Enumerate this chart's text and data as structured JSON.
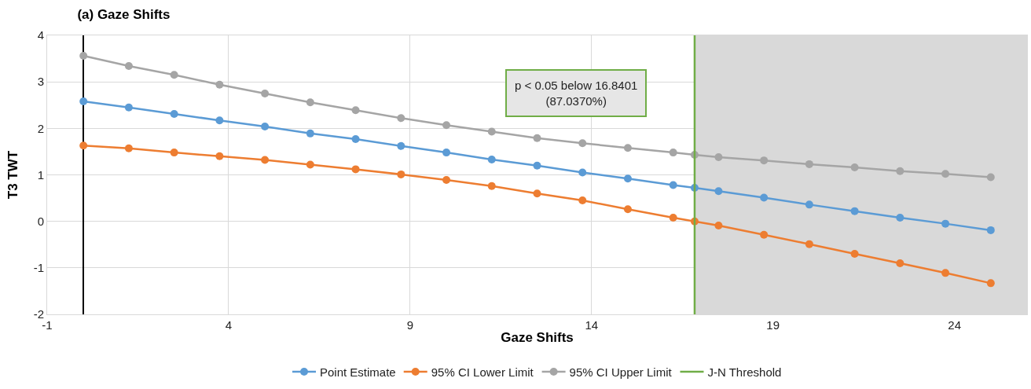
{
  "chart_data": {
    "type": "line",
    "title": "(a) Gaze Shifts",
    "xlabel": "Gaze Shifts",
    "ylabel": "T3 TWT",
    "x": [
      0,
      1.25,
      2.5,
      3.75,
      5,
      6.25,
      7.5,
      8.75,
      10,
      11.25,
      12.5,
      13.75,
      15,
      16.25,
      16.8401,
      17.5,
      18.75,
      20,
      21.25,
      22.5,
      23.75,
      25
    ],
    "series": [
      {
        "name": "Point Estimate",
        "color": "#5b9bd5",
        "values": [
          2.58,
          2.45,
          2.31,
          2.17,
          2.04,
          1.89,
          1.77,
          1.62,
          1.48,
          1.33,
          1.2,
          1.05,
          0.92,
          0.78,
          0.72,
          0.65,
          0.51,
          0.36,
          0.22,
          0.08,
          -0.05,
          -0.19
        ]
      },
      {
        "name": "95% CI Lower Limit",
        "color": "#ed7d31",
        "values": [
          1.63,
          1.57,
          1.48,
          1.4,
          1.32,
          1.22,
          1.12,
          1.01,
          0.89,
          0.76,
          0.6,
          0.45,
          0.26,
          0.08,
          0.0,
          -0.09,
          -0.29,
          -0.49,
          -0.7,
          -0.9,
          -1.11,
          -1.33
        ]
      },
      {
        "name": "95% CI Upper Limit",
        "color": "#a5a5a5",
        "values": [
          3.56,
          3.34,
          3.15,
          2.94,
          2.75,
          2.56,
          2.39,
          2.22,
          2.07,
          1.93,
          1.79,
          1.68,
          1.58,
          1.48,
          1.43,
          1.38,
          1.31,
          1.23,
          1.16,
          1.08,
          1.02,
          0.95
        ]
      }
    ],
    "ref_lines": [
      {
        "axis": "x",
        "value": 16.8401,
        "label": "J-N Threshold",
        "color": "#70ad47"
      }
    ],
    "bands": [
      {
        "axis": "x",
        "from": 16.8401,
        "to": 26,
        "color": "#d9d9d9"
      }
    ],
    "annotations": [
      "p < 0.05 below 16.8401\n(87.0370%)"
    ],
    "xlim": [
      -1,
      26
    ],
    "xticks": [
      -1,
      4,
      9,
      14,
      19,
      24
    ],
    "ylim": [
      -2,
      4
    ],
    "yticks": [
      -2,
      -1,
      0,
      1,
      2,
      3,
      4
    ],
    "grid": true,
    "legend": "bottom",
    "marker": "circle",
    "line_style": "solid"
  }
}
